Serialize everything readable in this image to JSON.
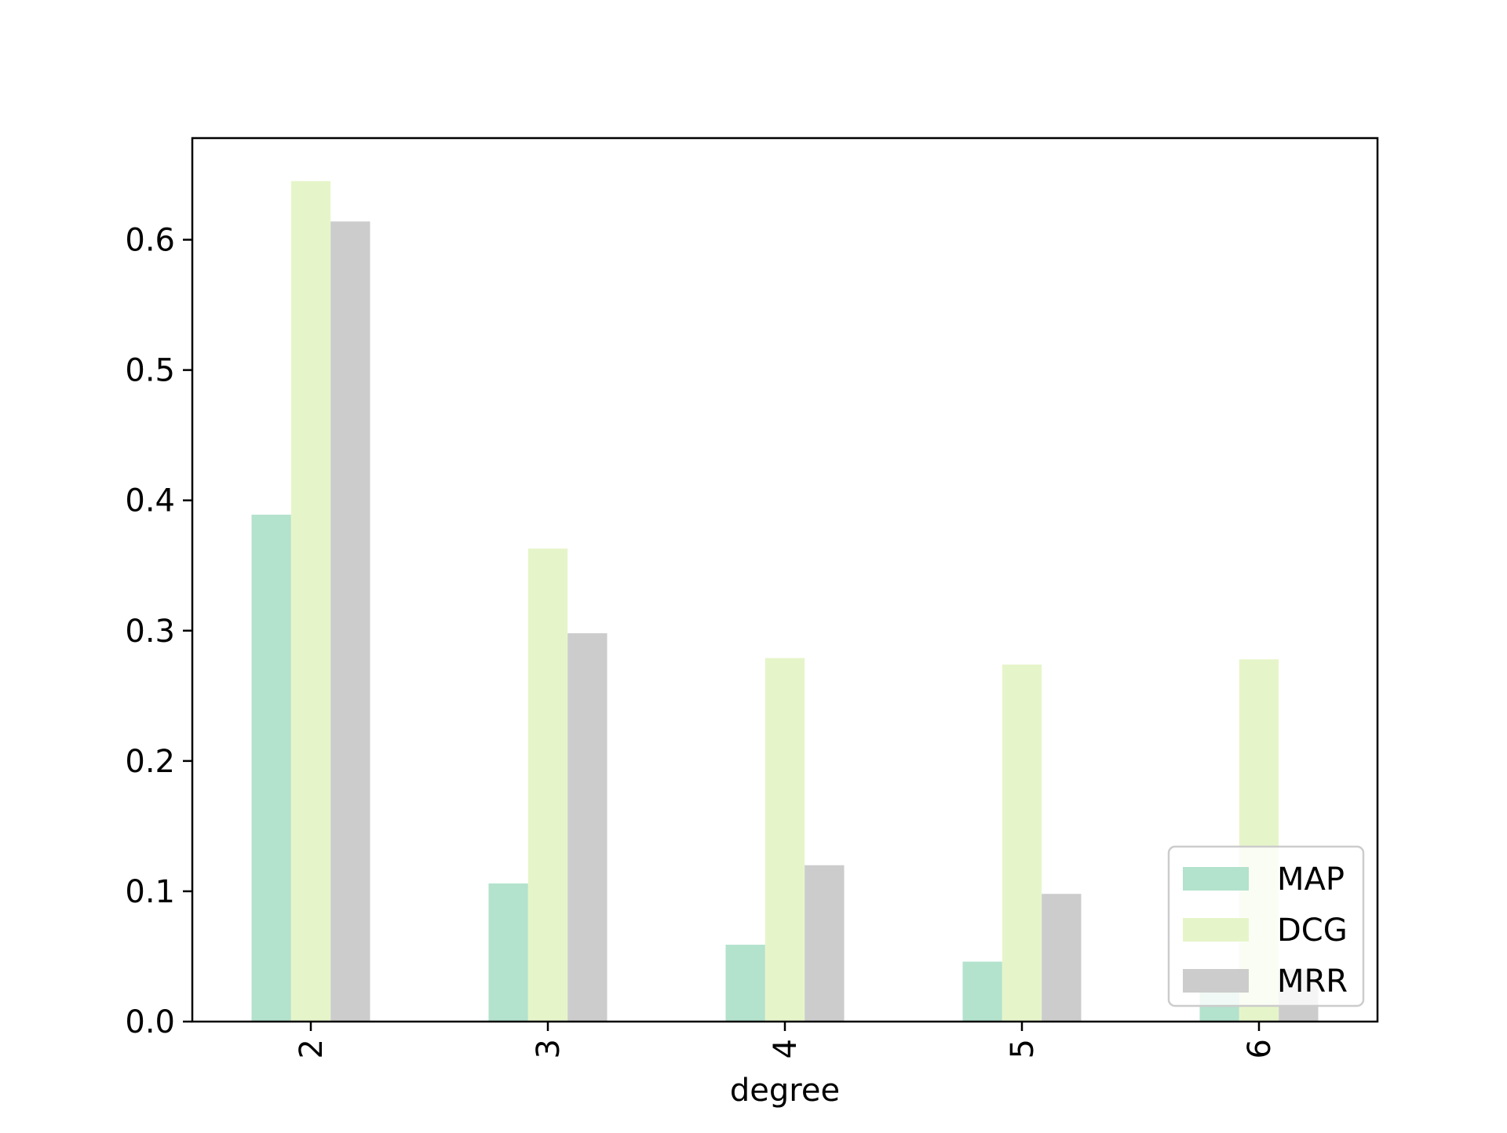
{
  "chart_data": {
    "type": "bar",
    "title": "",
    "xlabel": "degree",
    "ylabel": "",
    "categories": [
      "2",
      "3",
      "4",
      "5",
      "6"
    ],
    "series": [
      {
        "name": "MAP",
        "color": "#b3e2cd",
        "values": [
          0.389,
          0.106,
          0.059,
          0.046,
          0.025
        ]
      },
      {
        "name": "DCG",
        "color": "#e6f5c9",
        "values": [
          0.645,
          0.363,
          0.279,
          0.274,
          0.278
        ]
      },
      {
        "name": "MRR",
        "color": "#cccccc",
        "values": [
          0.614,
          0.298,
          0.12,
          0.098,
          0.04
        ]
      }
    ],
    "ylim": [
      0,
      0.678
    ],
    "yticks": [
      "0.0",
      "0.1",
      "0.2",
      "0.3",
      "0.4",
      "0.5",
      "0.6"
    ],
    "xtick_rotation": "vertical",
    "grid": false,
    "legend_position": "lower-right"
  }
}
